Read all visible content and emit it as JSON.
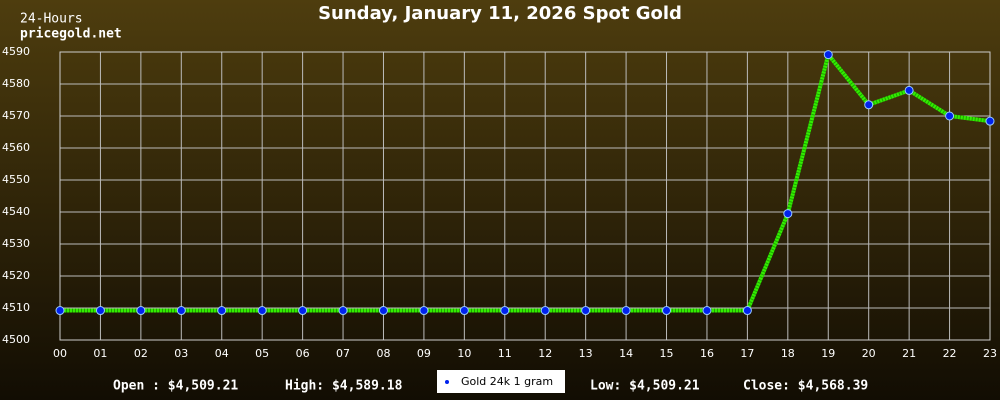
{
  "chart_data": {
    "type": "line",
    "title": "Sunday, January 11, 2026 Spot Gold",
    "corner_labels": [
      "24-Hours",
      "pricegold.net"
    ],
    "categories": [
      "00",
      "01",
      "02",
      "03",
      "04",
      "05",
      "06",
      "07",
      "08",
      "09",
      "10",
      "11",
      "12",
      "13",
      "14",
      "15",
      "16",
      "17",
      "18",
      "19",
      "20",
      "21",
      "22",
      "23"
    ],
    "series": [
      {
        "name": "Gold 24k 1 gram",
        "color": "#33ee00",
        "marker_color": "#0022ee",
        "values": [
          4509.21,
          4509.21,
          4509.21,
          4509.21,
          4509.21,
          4509.21,
          4509.21,
          4509.21,
          4509.21,
          4509.21,
          4509.21,
          4509.21,
          4509.21,
          4509.21,
          4509.21,
          4509.21,
          4509.21,
          4509.21,
          4539.5,
          4589.18,
          4573.5,
          4578,
          4570,
          4568.39
        ]
      }
    ],
    "ylim": [
      4500,
      4590
    ],
    "yticks": [
      4500,
      4510,
      4520,
      4530,
      4540,
      4550,
      4560,
      4570,
      4580,
      4590
    ],
    "grid": true,
    "footer": [
      "Open : $4,509.21",
      "High: $4,589.18",
      "Low: $4,509.21",
      "Close: $4,568.39"
    ]
  }
}
